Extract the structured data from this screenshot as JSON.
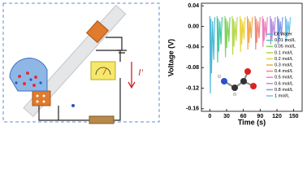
{
  "diagram": {
    "current_label": "I'"
  },
  "chart_data": {
    "type": "line",
    "x_label": "Time (s)",
    "y_label": "Voltage (V)",
    "xlim": [
      -15,
      165
    ],
    "ylim": [
      -0.165,
      0.045
    ],
    "xticks": [
      0,
      30,
      60,
      90,
      120,
      150
    ],
    "yticks": [
      0.04,
      {
        "value": 0,
        "label": "0.00"
      },
      -0.04,
      -0.08,
      -0.12,
      -0.16
    ],
    "legend": "right",
    "series": [
      {
        "name": "DI Water",
        "color": "#4fb9d8",
        "x": [
          0,
          1,
          2,
          3,
          5,
          7,
          9
        ],
        "values": [
          0.02,
          -0.13,
          0.015,
          -0.091,
          0.01,
          -0.065,
          0.018
        ]
      },
      {
        "name": "0.01 mol/L",
        "color": "#49c9a6",
        "x": [
          13,
          14,
          15,
          16,
          18,
          20,
          22
        ],
        "values": [
          0.02,
          -0.07,
          0.015,
          -0.049,
          0.01,
          -0.035,
          0.018
        ]
      },
      {
        "name": "0.05 mol/L",
        "color": "#7fd35e",
        "x": [
          27,
          28,
          29,
          30,
          32,
          34,
          36
        ],
        "values": [
          0.02,
          -0.06,
          0.015,
          -0.042,
          0.01,
          -0.03,
          0.018
        ]
      },
      {
        "name": "0.1 mol/L",
        "color": "#b8d84a",
        "x": [
          40,
          41,
          42,
          43,
          45,
          47,
          49
        ],
        "values": [
          0.02,
          -0.055,
          0.015,
          -0.039,
          0.01,
          -0.028,
          0.018
        ]
      },
      {
        "name": "0.2 mol/L",
        "color": "#ecd33e",
        "x": [
          54,
          55,
          56,
          57,
          59,
          61,
          63
        ],
        "values": [
          0.02,
          -0.05,
          0.015,
          -0.035,
          0.01,
          -0.025,
          0.018
        ]
      },
      {
        "name": "0.3 mol/L",
        "color": "#f3a94a",
        "x": [
          67,
          68,
          69,
          70,
          72,
          74,
          76
        ],
        "values": [
          0.02,
          -0.045,
          0.015,
          -0.032,
          0.01,
          -0.023,
          0.018
        ]
      },
      {
        "name": "0.4 mol/L",
        "color": "#f2877a",
        "x": [
          81,
          82,
          83,
          84,
          86,
          88,
          90
        ],
        "values": [
          0.02,
          -0.045,
          0.015,
          -0.032,
          0.01,
          -0.023,
          0.018
        ]
      },
      {
        "name": "0.5 mol/L",
        "color": "#ec7fc0",
        "x": [
          94,
          95,
          96,
          97,
          99,
          101,
          103
        ],
        "values": [
          0.02,
          -0.04,
          0.015,
          -0.028,
          0.01,
          -0.02,
          0.018
        ]
      },
      {
        "name": "0.6 mol/L",
        "color": "#b68be0",
        "x": [
          108,
          109,
          110,
          111,
          113,
          115,
          117
        ],
        "values": [
          0.02,
          -0.035,
          0.015,
          -0.025,
          0.01,
          -0.018,
          0.018
        ]
      },
      {
        "name": "0.8 mol/L",
        "color": "#7f96e8",
        "x": [
          121,
          122,
          123,
          124,
          126,
          128,
          130
        ],
        "values": [
          0.02,
          -0.035,
          0.015,
          -0.025,
          0.01,
          -0.018,
          0.018
        ]
      },
      {
        "name": "1 mol/L",
        "color": "#6cc3ef",
        "x": [
          135,
          136,
          137,
          138,
          140,
          142,
          144
        ],
        "values": [
          0.02,
          -0.03,
          0.015,
          -0.021,
          0.01,
          -0.015,
          0.018
        ]
      }
    ]
  }
}
